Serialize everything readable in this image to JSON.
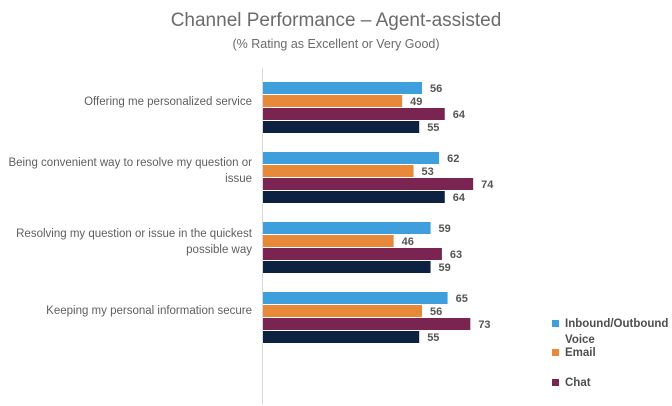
{
  "chart_data": {
    "type": "bar",
    "orientation": "horizontal",
    "title": "Channel Performance – Agent-assisted",
    "subtitle": "(% Rating as Excellent or Very Good)",
    "categories": [
      "Offering me personalized service",
      "Being convenient way to resolve my question or issue",
      "Resolving my question or issue in the quickest possible way",
      "Keeping my personal information secure"
    ],
    "series": [
      {
        "name": "Inbound/Outbound Voice",
        "color": "#3f9fdc",
        "values": [
          56,
          62,
          59,
          65
        ]
      },
      {
        "name": "Email",
        "color": "#e8893a",
        "values": [
          49,
          53,
          46,
          56
        ]
      },
      {
        "name": "Chat",
        "color": "#7a2452",
        "values": [
          64,
          74,
          63,
          73
        ]
      },
      {
        "name": "",
        "color": "#0d2240",
        "values": [
          55,
          64,
          59,
          55
        ]
      }
    ],
    "xlim": [
      0,
      100
    ],
    "grid": false,
    "legend_position": "bottom-right"
  }
}
